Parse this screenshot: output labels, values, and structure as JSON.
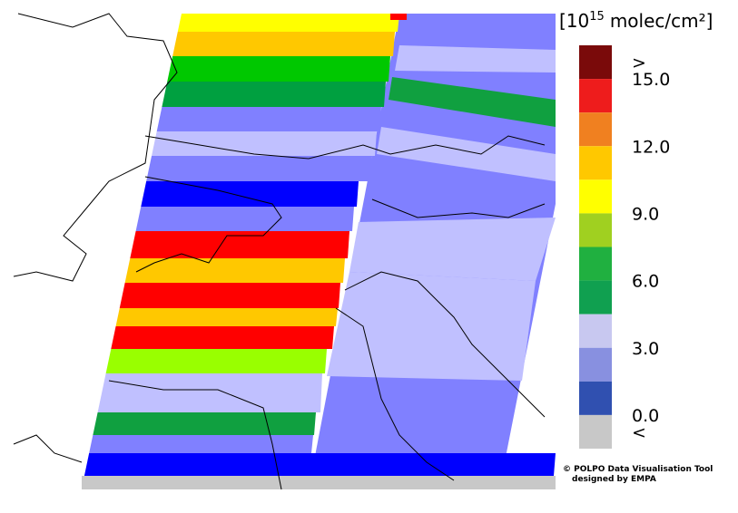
{
  "colorbar": {
    "title": {
      "prefix": "[10",
      "exponent": "15",
      "suffix": "molec/cm²]"
    },
    "bins": [
      "#7a0a0a",
      "#ee1c1c",
      "#f08020",
      "#ffc800",
      "#ffff00",
      "#a0d020",
      "#20b040",
      "#10a050",
      "#c8c8f0",
      "#8890e0",
      "#3050b0",
      "#c8c8c8"
    ],
    "labels": [
      ">",
      "15.0",
      "12.0",
      "9.0",
      "6.0",
      "3.0",
      "0.0",
      "<"
    ]
  },
  "credit": [
    "© POLPO Data Visualisation Tool",
    "designed by EMPA"
  ]
}
